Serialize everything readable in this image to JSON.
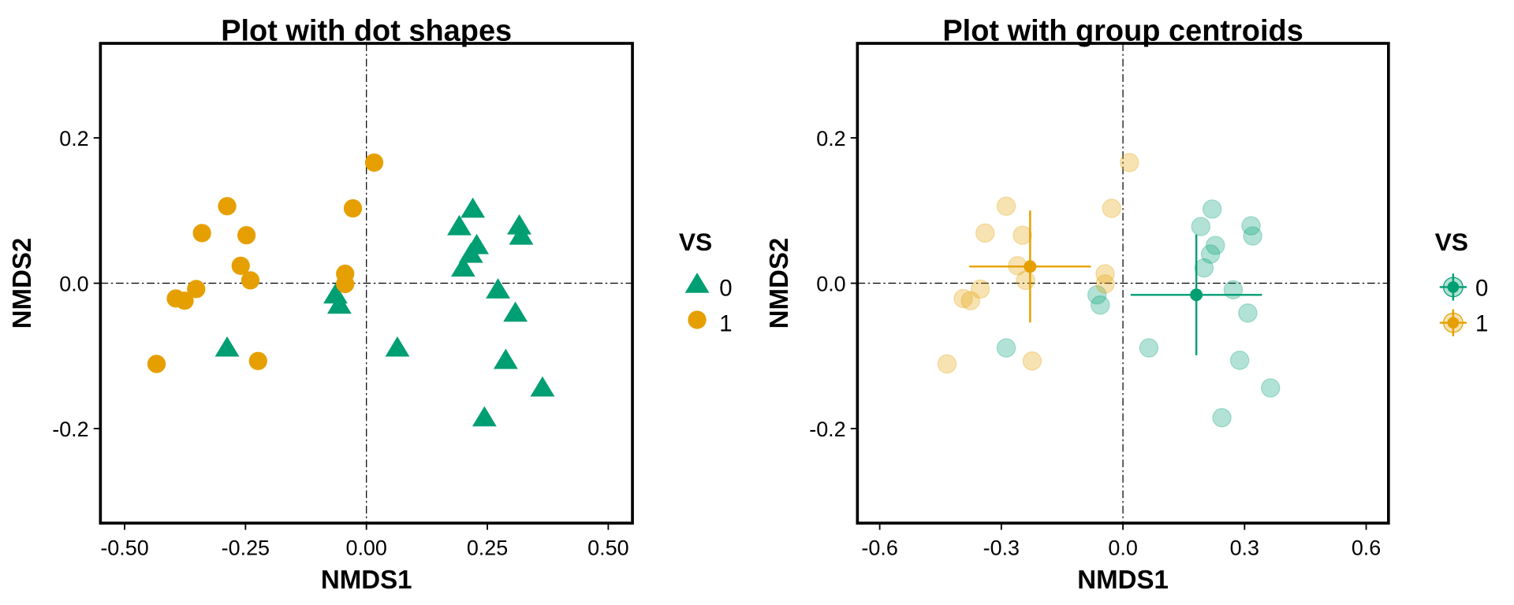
{
  "chart_data": [
    {
      "type": "scatter",
      "title": "Plot with dot shapes",
      "x_label": "NMDS1",
      "y_label": "NMDS2",
      "legend_title": "VS",
      "xlim": [
        -0.55,
        0.55
      ],
      "ylim": [
        -0.33,
        0.33
      ],
      "xticks": [
        {
          "value": -0.5,
          "label": "-0.50"
        },
        {
          "value": -0.25,
          "label": "-0.25"
        },
        {
          "value": 0,
          "label": "0.00"
        },
        {
          "value": 0.25,
          "label": "0.25"
        },
        {
          "value": 0.5,
          "label": "0.50"
        }
      ],
      "yticks": [
        -0.2,
        {
          "value": 0,
          "label": "0.0"
        },
        0.2
      ],
      "series": [
        {
          "name": "0",
          "color": "#009E73",
          "shape": "triangle",
          "x": [
            0.22,
            0.192,
            0.316,
            0.32,
            0.228,
            0.216,
            0.2,
            0.272,
            0.308,
            -0.064,
            -0.056,
            0.064,
            -0.288,
            0.288,
            0.364,
            0.244
          ],
          "y": [
            0.102,
            0.078,
            0.079,
            0.065,
            0.052,
            0.04,
            0.021,
            -0.009,
            -0.041,
            -0.016,
            -0.03,
            -0.089,
            -0.089,
            -0.106,
            -0.144,
            -0.185
          ]
        },
        {
          "name": "1",
          "color": "#E69F00",
          "shape": "circle",
          "x": [
            0.016,
            -0.028,
            -0.288,
            -0.34,
            -0.248,
            -0.26,
            -0.24,
            -0.044,
            -0.044,
            -0.352,
            -0.394,
            -0.376,
            -0.434,
            -0.224
          ],
          "y": [
            0.166,
            0.103,
            0.106,
            0.069,
            0.066,
            0.024,
            0.004,
            0.013,
            -0.001,
            -0.008,
            -0.021,
            -0.024,
            -0.111,
            -0.107
          ]
        }
      ]
    },
    {
      "type": "centroid",
      "title": "Plot with group centroids",
      "x_label": "NMDS1",
      "y_label": "NMDS2",
      "legend_title": "VS",
      "xlim": [
        -0.655,
        0.655
      ],
      "ylim": [
        -0.33,
        0.33
      ],
      "alpha": 0.3,
      "xticks": [
        -0.6,
        -0.3,
        {
          "value": 0,
          "label": "0.0"
        },
        0.3,
        0.6
      ],
      "yticks": [
        -0.2,
        {
          "value": 0,
          "label": "0.0"
        },
        0.2
      ],
      "series": [
        {
          "name": "0",
          "color": "#009E73",
          "x": [
            0.22,
            0.192,
            0.316,
            0.32,
            0.228,
            0.216,
            0.2,
            0.272,
            0.308,
            -0.064,
            -0.056,
            0.064,
            -0.288,
            0.288,
            0.364,
            0.244
          ],
          "y": [
            0.102,
            0.078,
            0.079,
            0.065,
            0.052,
            0.04,
            0.021,
            -0.009,
            -0.041,
            -0.016,
            -0.03,
            -0.089,
            -0.089,
            -0.106,
            -0.144,
            -0.185
          ],
          "centroid": {
            "x": 0.181,
            "y": -0.016,
            "xerr": 0.162,
            "yerr": 0.083
          }
        },
        {
          "name": "1",
          "color": "#E69F00",
          "x": [
            0.016,
            -0.028,
            -0.288,
            -0.34,
            -0.248,
            -0.26,
            -0.24,
            -0.044,
            -0.044,
            -0.352,
            -0.394,
            -0.376,
            -0.434,
            -0.224
          ],
          "y": [
            0.166,
            0.103,
            0.106,
            0.069,
            0.066,
            0.024,
            0.004,
            0.013,
            -0.001,
            -0.008,
            -0.021,
            -0.024,
            -0.111,
            -0.107
          ],
          "centroid": {
            "x": -0.229,
            "y": 0.023,
            "xerr": 0.15,
            "yerr": 0.077
          }
        }
      ]
    }
  ]
}
